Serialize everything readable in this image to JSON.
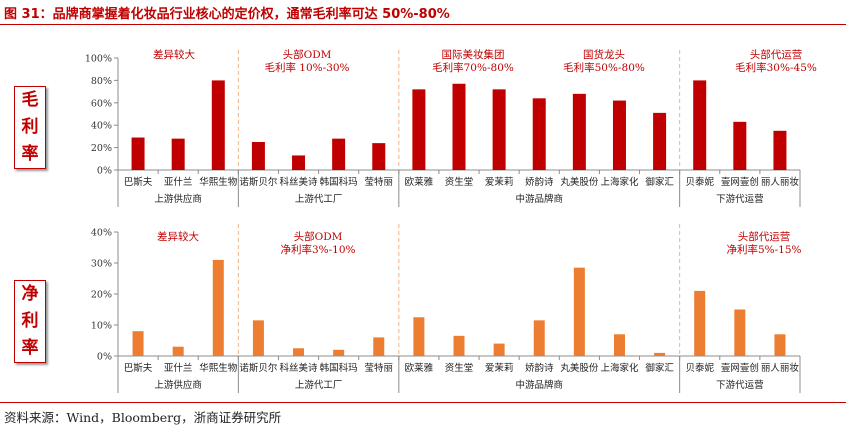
{
  "title": "图 31：品牌商掌握着化妆品行业核心的定价权，通常毛利率可达 50%-80%",
  "source": "资料来源：Wind，Bloomberg，浙商证券研究所",
  "colors": {
    "accent": "#c00000",
    "gross_bar": "#c00000",
    "net_bar": "#ed7d31",
    "axis": "#8c8c8c",
    "divider": "#f4b183"
  },
  "chart_data": [
    {
      "type": "bar",
      "side_label": [
        "毛",
        "利",
        "率"
      ],
      "categories": [
        "巴斯夫",
        "亚什兰",
        "华熙生物",
        "诺斯贝尔",
        "科丝美诗",
        "韩国科玛",
        "莹特丽",
        "欧莱雅",
        "资生堂",
        "爱茉莉",
        "娇韵诗",
        "丸美股份",
        "上海家化",
        "御家汇",
        "贝泰妮",
        "壹网壹创",
        "丽人丽妆"
      ],
      "values": [
        29,
        28,
        80,
        25,
        13,
        28,
        24,
        72,
        77,
        72,
        64,
        68,
        62,
        51,
        80,
        43,
        35
      ],
      "ylim": [
        0,
        100
      ],
      "yticks": [
        "0%",
        "20%",
        "40%",
        "60%",
        "80%",
        "100%"
      ],
      "groups": [
        "上游供应商",
        "上游代工厂",
        "中游品牌商",
        "下游代运营"
      ],
      "annotations": [
        {
          "lines": [
            "差异较大"
          ]
        },
        {
          "lines": [
            "头部ODM",
            "毛利率 10%-30%"
          ]
        },
        {
          "lines": [
            "国际美妆集团",
            "毛利率70%-80%"
          ]
        },
        {
          "lines": [
            "国货龙头",
            "毛利率50%-80%"
          ]
        },
        {
          "lines": [
            "头部代运营",
            "毛利率30%-45%"
          ]
        }
      ]
    },
    {
      "type": "bar",
      "side_label": [
        "净",
        "利",
        "率"
      ],
      "categories": [
        "巴斯夫",
        "亚什兰",
        "华熙生物",
        "诺斯贝尔",
        "科丝美诗",
        "韩国科玛",
        "莹特丽",
        "欧莱雅",
        "资生堂",
        "爱茉莉",
        "娇韵诗",
        "丸美股份",
        "上海家化",
        "御家汇",
        "贝泰妮",
        "壹网壹创",
        "丽人丽妆"
      ],
      "values": [
        8,
        3,
        31,
        11.5,
        2.5,
        2,
        6,
        12.5,
        6.5,
        4,
        11.5,
        28.5,
        7,
        1,
        21,
        15,
        7
      ],
      "ylim": [
        0,
        40
      ],
      "yticks": [
        "0%",
        "10%",
        "20%",
        "30%",
        "40%"
      ],
      "groups": [
        "上游供应商",
        "上游代工厂",
        "中游品牌商",
        "下游代运营"
      ],
      "annotations": [
        {
          "lines": [
            "差异较大"
          ]
        },
        {
          "lines": [
            "头部ODM",
            "净利率3%-10%"
          ]
        },
        {
          "lines": [
            "头部代运营",
            "净利率5%-15%"
          ]
        }
      ]
    }
  ]
}
